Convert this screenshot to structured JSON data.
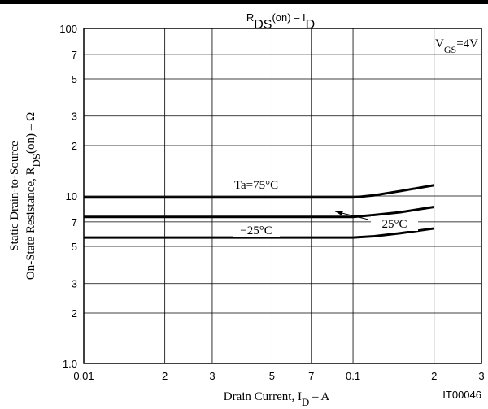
{
  "chart_data": {
    "type": "line",
    "title": [
      {
        "text": "R"
      },
      {
        "text": "DS",
        "sub": true
      },
      {
        "text": "(on)  –  I"
      },
      {
        "text": "D",
        "sub": true
      }
    ],
    "y_label_lines": [
      [
        {
          "text": "Static Drain-to-Source"
        }
      ],
      [
        {
          "text": "On-State Resistance, R"
        },
        {
          "text": "DS",
          "sub": true
        },
        {
          "text": "(on)  –  Ω"
        }
      ]
    ],
    "x_label": [
      {
        "text": "Drain Current, I"
      },
      {
        "text": "D",
        "sub": true
      },
      {
        "text": "  –  A"
      }
    ],
    "condition": [
      {
        "text": "V"
      },
      {
        "text": "GS",
        "sub": true
      },
      {
        "text": "=4V"
      }
    ],
    "code": "IT00046",
    "log_x": true,
    "log_y": true,
    "grid": true,
    "xlim": [
      0.01,
      0.3
    ],
    "xticks": [
      {
        "value": 0.01,
        "label": "0.01"
      },
      {
        "value": 0.02,
        "label": "2"
      },
      {
        "value": 0.03,
        "label": "3"
      },
      {
        "value": 0.05,
        "label": "5"
      },
      {
        "value": 0.07,
        "label": "7"
      },
      0.1,
      {
        "value": 0.2,
        "label": "2"
      },
      {
        "value": 0.3,
        "label": "3"
      }
    ],
    "ylim": [
      1,
      100
    ],
    "yticks": [
      {
        "value": 1,
        "label": "1.0"
      },
      2,
      3,
      5,
      7,
      10,
      {
        "value": 20,
        "label": "2"
      },
      {
        "value": 30,
        "label": "3"
      },
      {
        "value": 50,
        "label": "5"
      },
      {
        "value": 70,
        "label": "7"
      },
      100
    ],
    "x": [
      0.01,
      0.1,
      0.12,
      0.15,
      0.2
    ],
    "series": [
      {
        "name": "Ta=75°C",
        "color": "#000000",
        "values": [
          9.8,
          9.8,
          10.1,
          10.7,
          11.6
        ]
      },
      {
        "name": "25°C",
        "color": "#000000",
        "values": [
          7.5,
          7.5,
          7.7,
          8.0,
          8.6
        ]
      },
      {
        "name": "−25°C",
        "color": "#000000",
        "values": [
          5.65,
          5.65,
          5.75,
          6.0,
          6.4
        ]
      }
    ]
  }
}
